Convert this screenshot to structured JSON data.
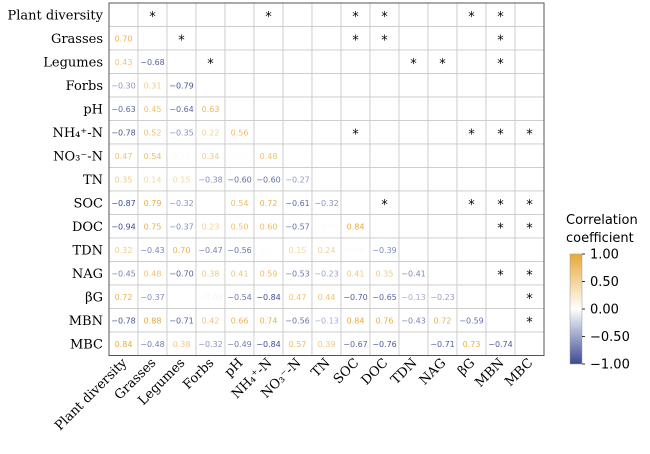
{
  "chart_data": {
    "type": "heatmap",
    "layout": "lower triangle shows correlation coefficients; upper triangle shows significance asterisks",
    "variables": [
      "Plant diversity",
      "Grasses",
      "Legumes",
      "Forbs",
      "pH",
      "NH₄⁺-N",
      "NO₃⁻-N",
      "TN",
      "SOC",
      "DOC",
      "TDN",
      "NAG",
      "βG",
      "MBN",
      "MBC"
    ],
    "lower_values": [
      [],
      [
        0.7
      ],
      [
        0.43,
        -0.68
      ],
      [
        -0.3,
        0.31,
        -0.79
      ],
      [
        -0.63,
        0.45,
        -0.64,
        0.63
      ],
      [
        -0.78,
        0.52,
        -0.35,
        0.22,
        0.56
      ],
      [
        0.47,
        0.54,
        0.11,
        0.34,
        0.05,
        0.48
      ],
      [
        0.35,
        0.14,
        0.15,
        -0.38,
        -0.6,
        -0.6,
        -0.27
      ],
      [
        -0.87,
        0.79,
        -0.32,
        0.01,
        0.54,
        0.72,
        -0.61,
        -0.32
      ],
      [
        -0.94,
        0.75,
        -0.37,
        0.23,
        0.5,
        0.6,
        -0.57,
        -0.05,
        0.84
      ],
      [
        0.32,
        -0.43,
        0.7,
        -0.47,
        -0.56,
        0.07,
        0.15,
        0.24,
        0.09,
        -0.39
      ],
      [
        -0.45,
        0.48,
        -0.7,
        0.38,
        0.41,
        0.59,
        -0.53,
        -0.23,
        0.41,
        0.35,
        -0.41
      ],
      [
        0.72,
        -0.37,
        0.03,
        -0.09,
        -0.54,
        -0.84,
        0.47,
        0.44,
        -0.7,
        -0.65,
        -0.13,
        -0.23
      ],
      [
        -0.78,
        0.88,
        -0.71,
        0.42,
        0.66,
        0.74,
        -0.56,
        -0.13,
        0.84,
        0.76,
        -0.43,
        0.72,
        -0.59
      ],
      [
        0.84,
        -0.48,
        0.38,
        -0.32,
        -0.49,
        -0.84,
        0.57,
        0.39,
        -0.67,
        -0.76,
        0.03,
        -0.71,
        0.73,
        -0.74
      ]
    ],
    "significance": [
      [
        0,
        2
      ],
      [
        0,
        6
      ],
      [
        0,
        9
      ],
      [
        0,
        10
      ],
      [
        0,
        13
      ],
      [
        0,
        14
      ],
      [
        1,
        3
      ],
      [
        1,
        9
      ],
      [
        1,
        10
      ],
      [
        1,
        14
      ],
      [
        2,
        4
      ],
      [
        2,
        11
      ],
      [
        2,
        12
      ],
      [
        2,
        14
      ],
      [
        5,
        9
      ],
      [
        5,
        13
      ],
      [
        5,
        14
      ],
      [
        5,
        15
      ],
      [
        8,
        10
      ],
      [
        8,
        13
      ],
      [
        8,
        14
      ],
      [
        8,
        15
      ],
      [
        9,
        14
      ],
      [
        9,
        15
      ],
      [
        11,
        14
      ],
      [
        11,
        15
      ],
      [
        12,
        15
      ],
      [
        13,
        15
      ]
    ],
    "legend": {
      "title_lines": [
        "Correlation",
        "coefficient"
      ],
      "ticks": [
        "1.00",
        "0.50",
        "0.00",
        "−0.50",
        "−1.00"
      ],
      "range": [
        -1,
        1
      ],
      "positive_color": "#e8a838",
      "negative_color": "#3a4a94",
      "zero_color": "#ffffff"
    },
    "significance_marker": "*"
  }
}
